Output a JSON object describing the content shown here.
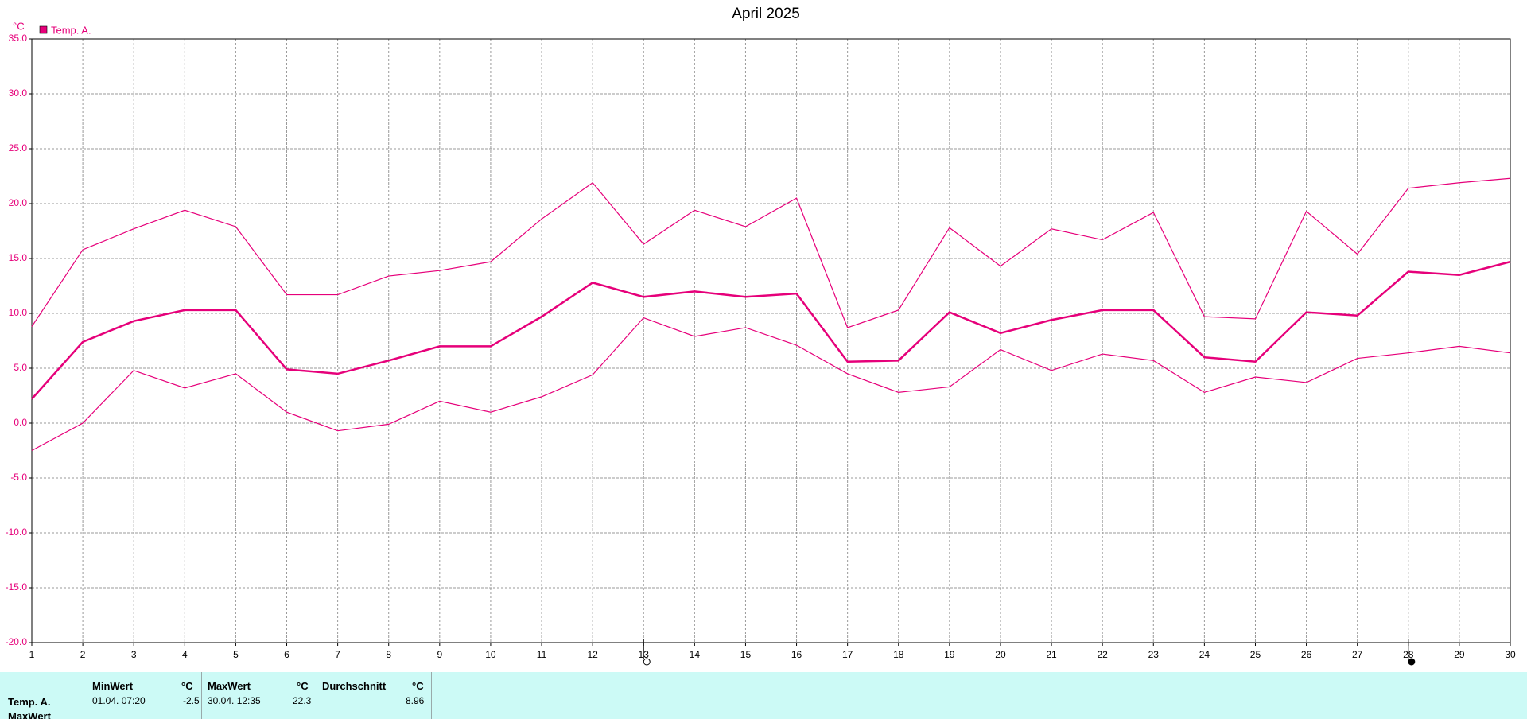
{
  "chart_data": {
    "type": "line",
    "title": "April 2025",
    "y_unit": "°C",
    "categories": [
      "1",
      "2",
      "3",
      "4",
      "5",
      "6",
      "7",
      "8",
      "9",
      "10",
      "11",
      "12",
      "13",
      "14",
      "15",
      "16",
      "17",
      "18",
      "19",
      "20",
      "21",
      "22",
      "23",
      "24",
      "25",
      "26",
      "27",
      "28",
      "29",
      "30"
    ],
    "series": [
      {
        "name": "Temp. A.",
        "color": "#e6007a",
        "values": [
          2.2,
          7.4,
          9.3,
          10.3,
          10.3,
          4.9,
          4.5,
          5.7,
          7.0,
          7.0,
          9.7,
          12.8,
          11.5,
          12.0,
          11.5,
          11.8,
          5.6,
          5.7,
          10.1,
          8.2,
          9.4,
          10.3,
          10.3,
          6.0,
          5.6,
          10.1,
          9.8,
          13.8,
          13.5,
          14.7
        ],
        "max": [
          8.8,
          15.8,
          17.7,
          19.4,
          17.9,
          11.7,
          11.7,
          13.4,
          13.9,
          14.7,
          18.6,
          21.9,
          16.3,
          19.4,
          17.9,
          20.5,
          8.7,
          10.3,
          17.8,
          14.3,
          17.7,
          16.7,
          19.2,
          9.7,
          9.5,
          19.3,
          15.4,
          21.4,
          21.9,
          22.3
        ],
        "min": [
          -2.5,
          0.0,
          4.8,
          3.2,
          4.5,
          1.0,
          -0.7,
          -0.1,
          2.0,
          1.0,
          2.4,
          4.4,
          9.6,
          7.9,
          8.7,
          7.1,
          4.5,
          2.8,
          3.3,
          6.7,
          4.8,
          6.3,
          5.7,
          2.8,
          4.2,
          3.7,
          5.9,
          6.4,
          7.0,
          6.4
        ]
      }
    ],
    "ylim": [
      -20,
      35
    ],
    "yticks": [
      {
        "value": -20,
        "label": "-20.0"
      },
      {
        "value": -15,
        "label": "-15.0"
      },
      {
        "value": -10,
        "label": "-10.0"
      },
      {
        "value": -5,
        "label": "-5.0"
      },
      {
        "value": 0,
        "label": "0.0"
      },
      {
        "value": 5,
        "label": "5.0"
      },
      {
        "value": 10,
        "label": "10.0"
      },
      {
        "value": 15,
        "label": "15.0"
      },
      {
        "value": 20,
        "label": "20.0"
      },
      {
        "value": 25,
        "label": "25.0"
      },
      {
        "value": 30,
        "label": "30.0"
      },
      {
        "value": 35,
        "label": "35.0"
      }
    ],
    "grid": true
  },
  "table": {
    "columns": [
      "MinWert",
      "°C",
      "MaxWert",
      "°C",
      "Durchschnitt",
      "°C"
    ],
    "rows": [
      [
        "Temp. A.",
        "01.04. 07:20",
        "-2.5",
        "30.04. 12:35",
        "22.3",
        "8.96"
      ],
      [
        "MaxWert"
      ]
    ]
  }
}
